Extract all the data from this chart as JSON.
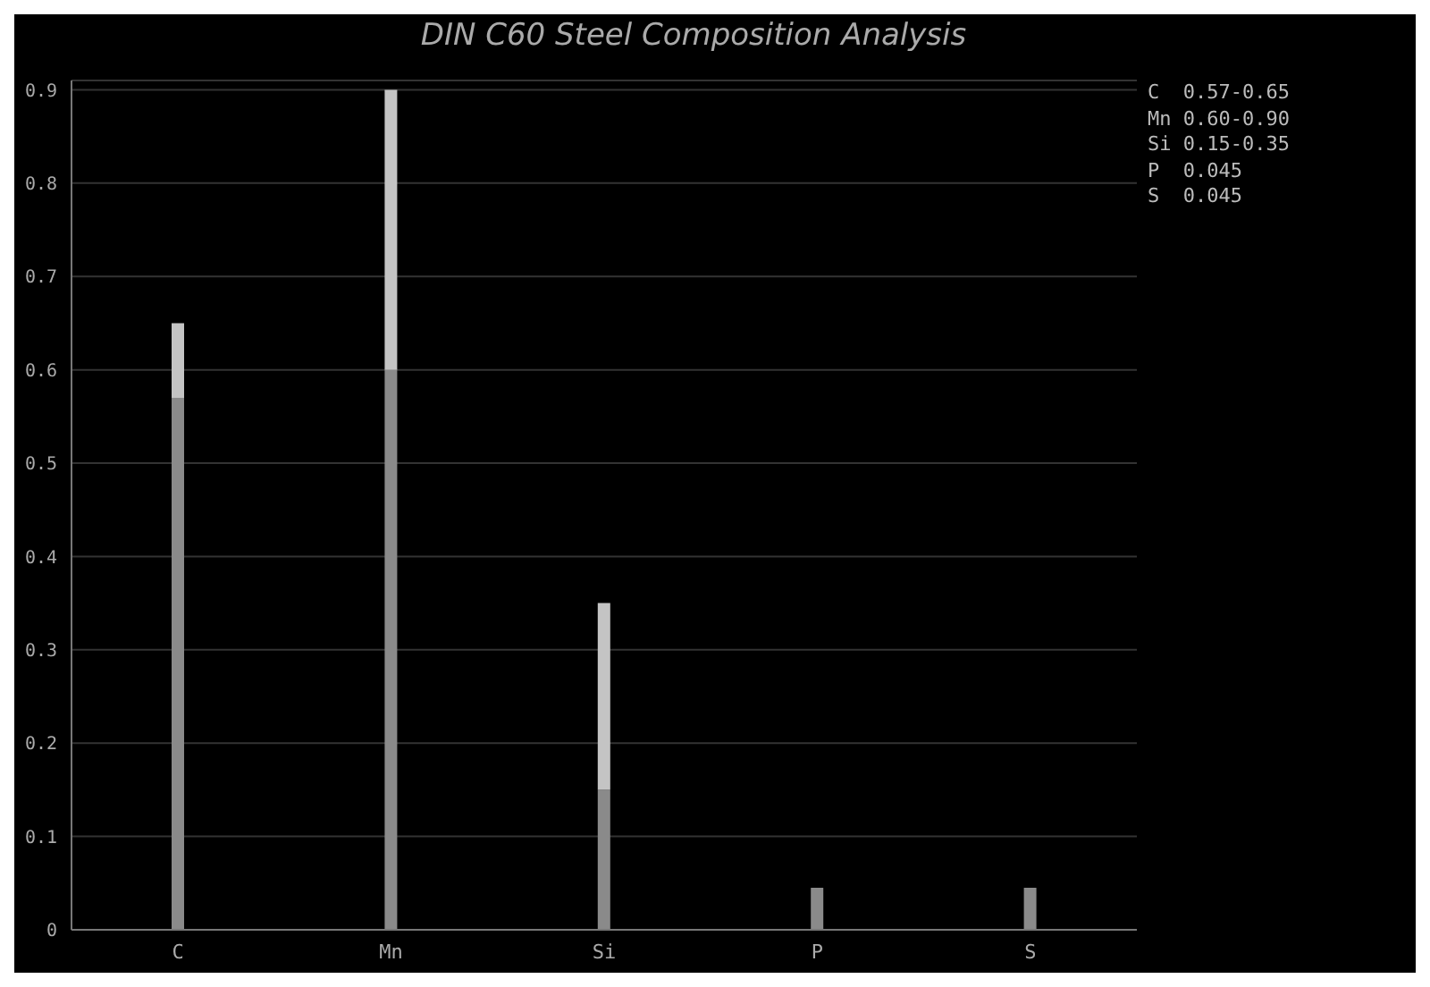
{
  "chart_data": {
    "type": "bar",
    "title": "DIN C60 Steel Composition Analysis",
    "categories": [
      "C",
      "Mn",
      "Si",
      "P",
      "S"
    ],
    "stacked": true,
    "series": [
      {
        "color": "#8a8a8a",
        "values": [
          0.57,
          0.6,
          0.15,
          0.045,
          0.045
        ]
      },
      {
        "color": "#c4c4c4",
        "values": [
          0.08,
          0.3,
          0.2,
          null,
          null
        ]
      }
    ],
    "ylim": [
      0,
      0.91
    ],
    "yticks": [
      0,
      0.1,
      0.2,
      0.3,
      0.4,
      0.5,
      0.6,
      0.7,
      0.8,
      0.9
    ],
    "grid": "y",
    "annotations": [
      "C  0.57-0.65",
      "Mn 0.60-0.90",
      "Si 0.15-0.35",
      "P  0.045",
      "S  0.045"
    ]
  }
}
